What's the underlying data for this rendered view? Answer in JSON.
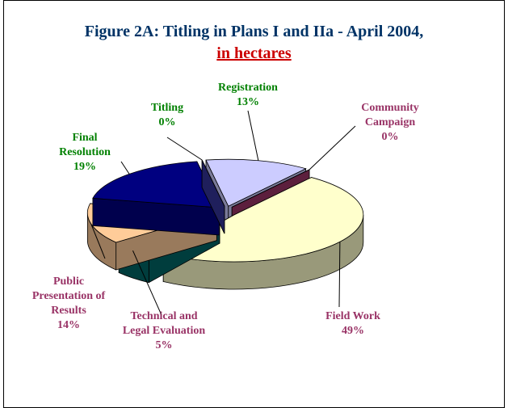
{
  "chart_data": {
    "type": "pie",
    "title": "Figure 2A: Titling in Plans I and IIa - April 2004,",
    "subtitle": "in hectares",
    "categories": [
      "Registration",
      "Community Campaign",
      "Field Work",
      "Technical and Legal Evaluation",
      "Public Presentation of Results",
      "Final Resolution",
      "Titling"
    ],
    "values": [
      13,
      0,
      49,
      5,
      14,
      19,
      0
    ],
    "value_labels": [
      "13%",
      "0%",
      "49%",
      "5%",
      "14%",
      "19%",
      "0%"
    ],
    "colors": [
      "#ccccff",
      "#993366",
      "#ffffcc",
      "#006666",
      "#ffcc99",
      "#000080",
      "#333399"
    ],
    "label_colors": [
      "#008000",
      "#993366",
      "#993366",
      "#993366",
      "#993366",
      "#008000",
      "#008000"
    ]
  }
}
